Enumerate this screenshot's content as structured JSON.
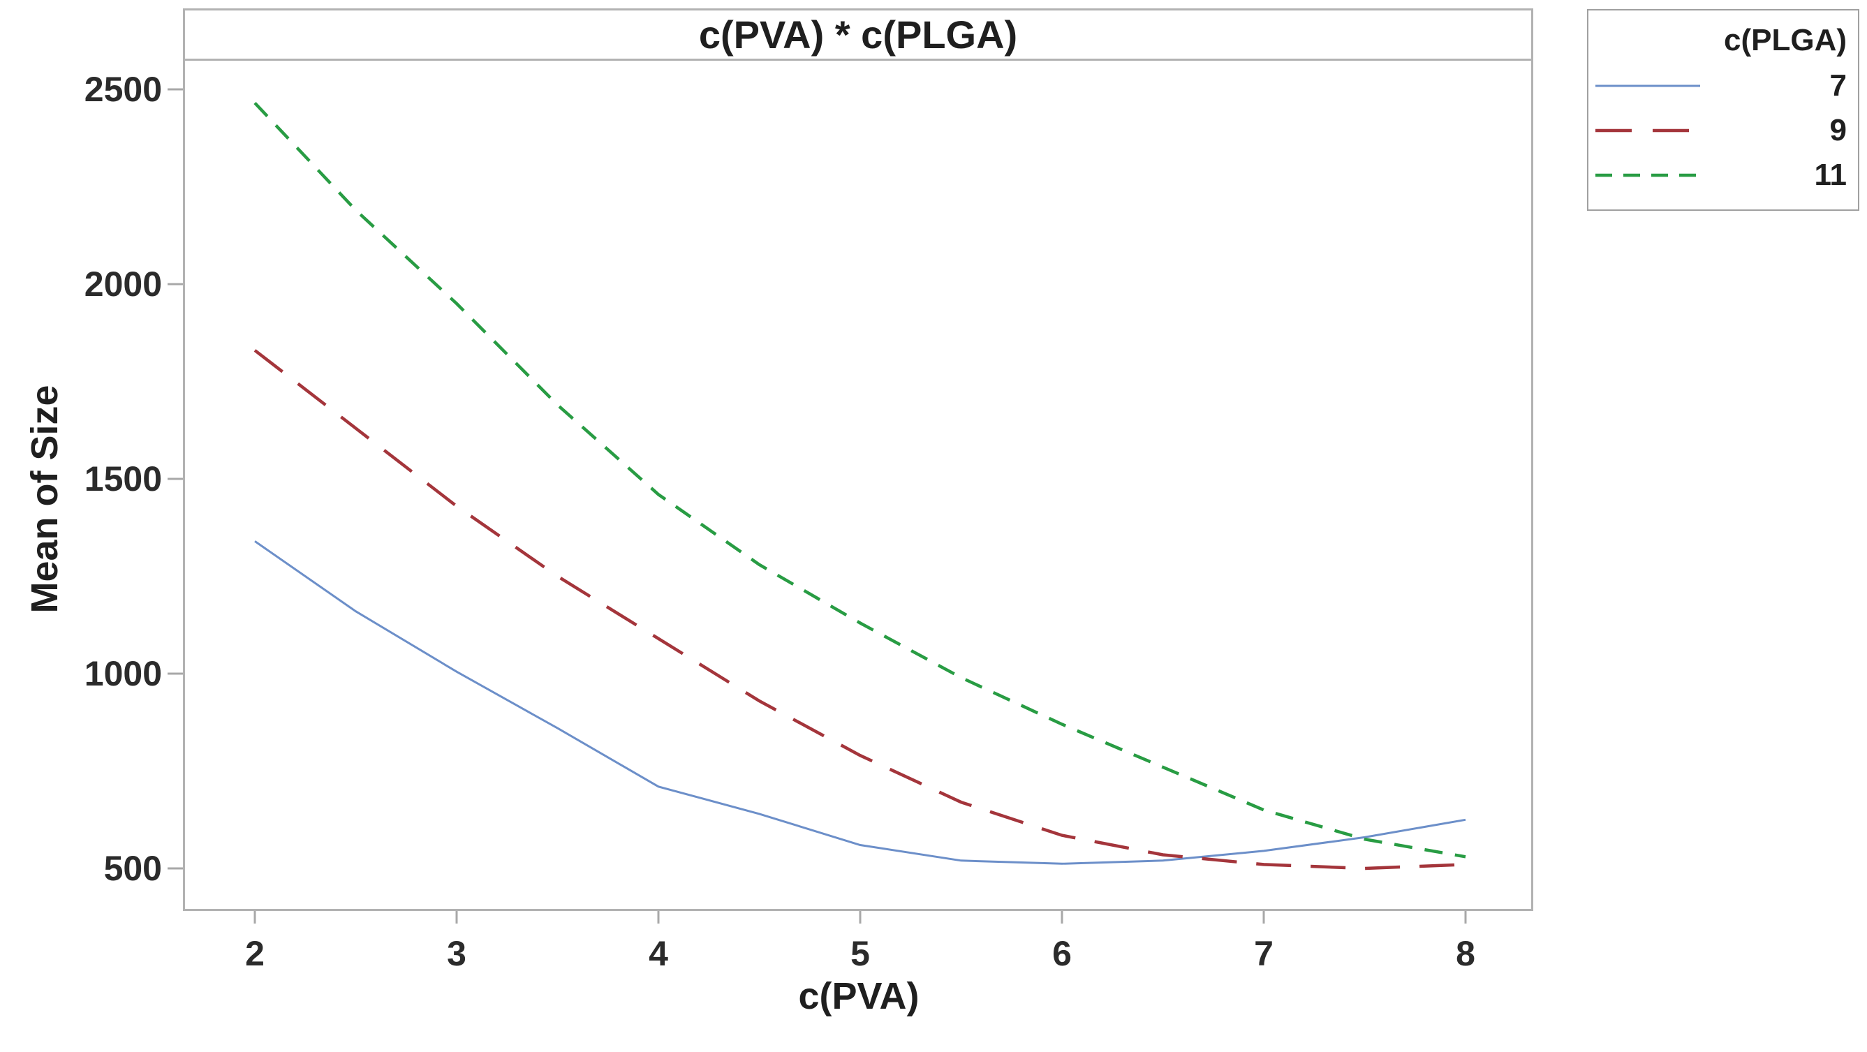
{
  "figure": {
    "title": "c(PVA) * c(PLGA)",
    "x_axis_label": "c(PVA)",
    "y_axis_label": "Mean of Size"
  },
  "legend": {
    "title": "c(PLGA)",
    "entries": [
      {
        "label": "7",
        "color": "#6c8fc9",
        "style": "solid"
      },
      {
        "label": "9",
        "color": "#a4353b",
        "style": "long-dash"
      },
      {
        "label": "11",
        "color": "#289c43",
        "style": "short-dash"
      }
    ]
  },
  "chart_data": {
    "type": "line",
    "title": "c(PVA) * c(PLGA)",
    "xlabel": "c(PVA)",
    "ylabel": "Mean of Size",
    "x": [
      2,
      2.5,
      3,
      3.5,
      4,
      4.5,
      5,
      5.5,
      6,
      6.5,
      7,
      7.5,
      8
    ],
    "series": [
      {
        "name": "7",
        "color": "#6c8fc9",
        "style": "solid",
        "values": [
          1340,
          1160,
          1005,
          860,
          710,
          640,
          560,
          520,
          512,
          520,
          545,
          580,
          625
        ]
      },
      {
        "name": "9",
        "color": "#a4353b",
        "style": "long-dash",
        "values": [
          1830,
          1630,
          1430,
          1250,
          1090,
          930,
          790,
          670,
          585,
          535,
          510,
          500,
          510
        ]
      },
      {
        "name": "11",
        "color": "#289c43",
        "style": "short-dash",
        "values": [
          2465,
          2190,
          1950,
          1690,
          1460,
          1280,
          1130,
          990,
          870,
          760,
          650,
          575,
          530
        ]
      }
    ],
    "x_ticks": [
      2,
      3,
      4,
      5,
      6,
      7,
      8
    ],
    "y_ticks": [
      500,
      1000,
      1500,
      2000,
      2500
    ],
    "xlim": [
      1.64,
      8.34
    ],
    "ylim": [
      390,
      2580
    ],
    "grid": false,
    "legend_position": "outside-top-right",
    "frame_color": "#b2b2b2",
    "tick_color": "#a8a8a8"
  }
}
